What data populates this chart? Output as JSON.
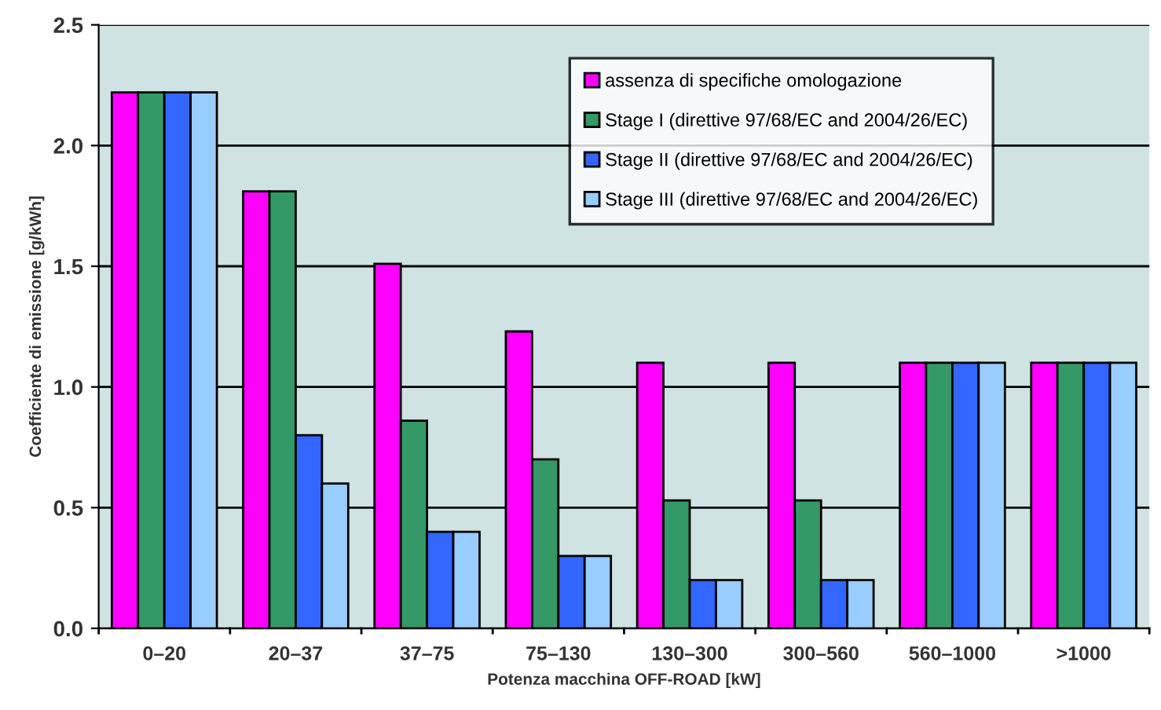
{
  "chart_data": {
    "type": "bar",
    "xlabel": "Potenza macchina OFF-ROAD [kW]",
    "ylabel": "Coefficiente di emissione [g/kWh]",
    "categories": [
      "0–20",
      "20–37",
      "37–75",
      "75–130",
      "130–300",
      "300–560",
      "560–1000",
      ">1000"
    ],
    "series": [
      {
        "name": "assenza di specifiche omologazione",
        "color": "#ff00ff",
        "values": [
          2.22,
          1.81,
          1.51,
          1.23,
          1.1,
          1.1,
          1.1,
          1.1
        ]
      },
      {
        "name": "Stage I (direttive 97/68/EC and 2004/26/EC)",
        "color": "#339966",
        "values": [
          2.22,
          1.81,
          0.86,
          0.7,
          0.53,
          0.53,
          1.1,
          1.1
        ]
      },
      {
        "name": "Stage II (direttive 97/68/EC and 2004/26/EC)",
        "color": "#3366ff",
        "values": [
          2.22,
          0.8,
          0.4,
          0.3,
          0.2,
          0.2,
          1.1,
          1.1
        ]
      },
      {
        "name": "Stage III (direttive 97/68/EC and 2004/26/EC)",
        "color": "#99ccff",
        "values": [
          2.22,
          0.6,
          0.4,
          0.3,
          0.2,
          0.2,
          1.1,
          1.1
        ]
      }
    ],
    "ylim": [
      0,
      2.5
    ],
    "yticks": [
      {
        "value": 0,
        "label": "0.0"
      },
      {
        "value": 0.5,
        "label": "0.5"
      },
      {
        "value": 1,
        "label": "1.0"
      },
      {
        "value": 1.5,
        "label": "1.5"
      },
      {
        "value": 2,
        "label": "2.0"
      },
      {
        "value": 2.5,
        "label": "2.5"
      }
    ],
    "grid": "y",
    "legend": "top right"
  }
}
